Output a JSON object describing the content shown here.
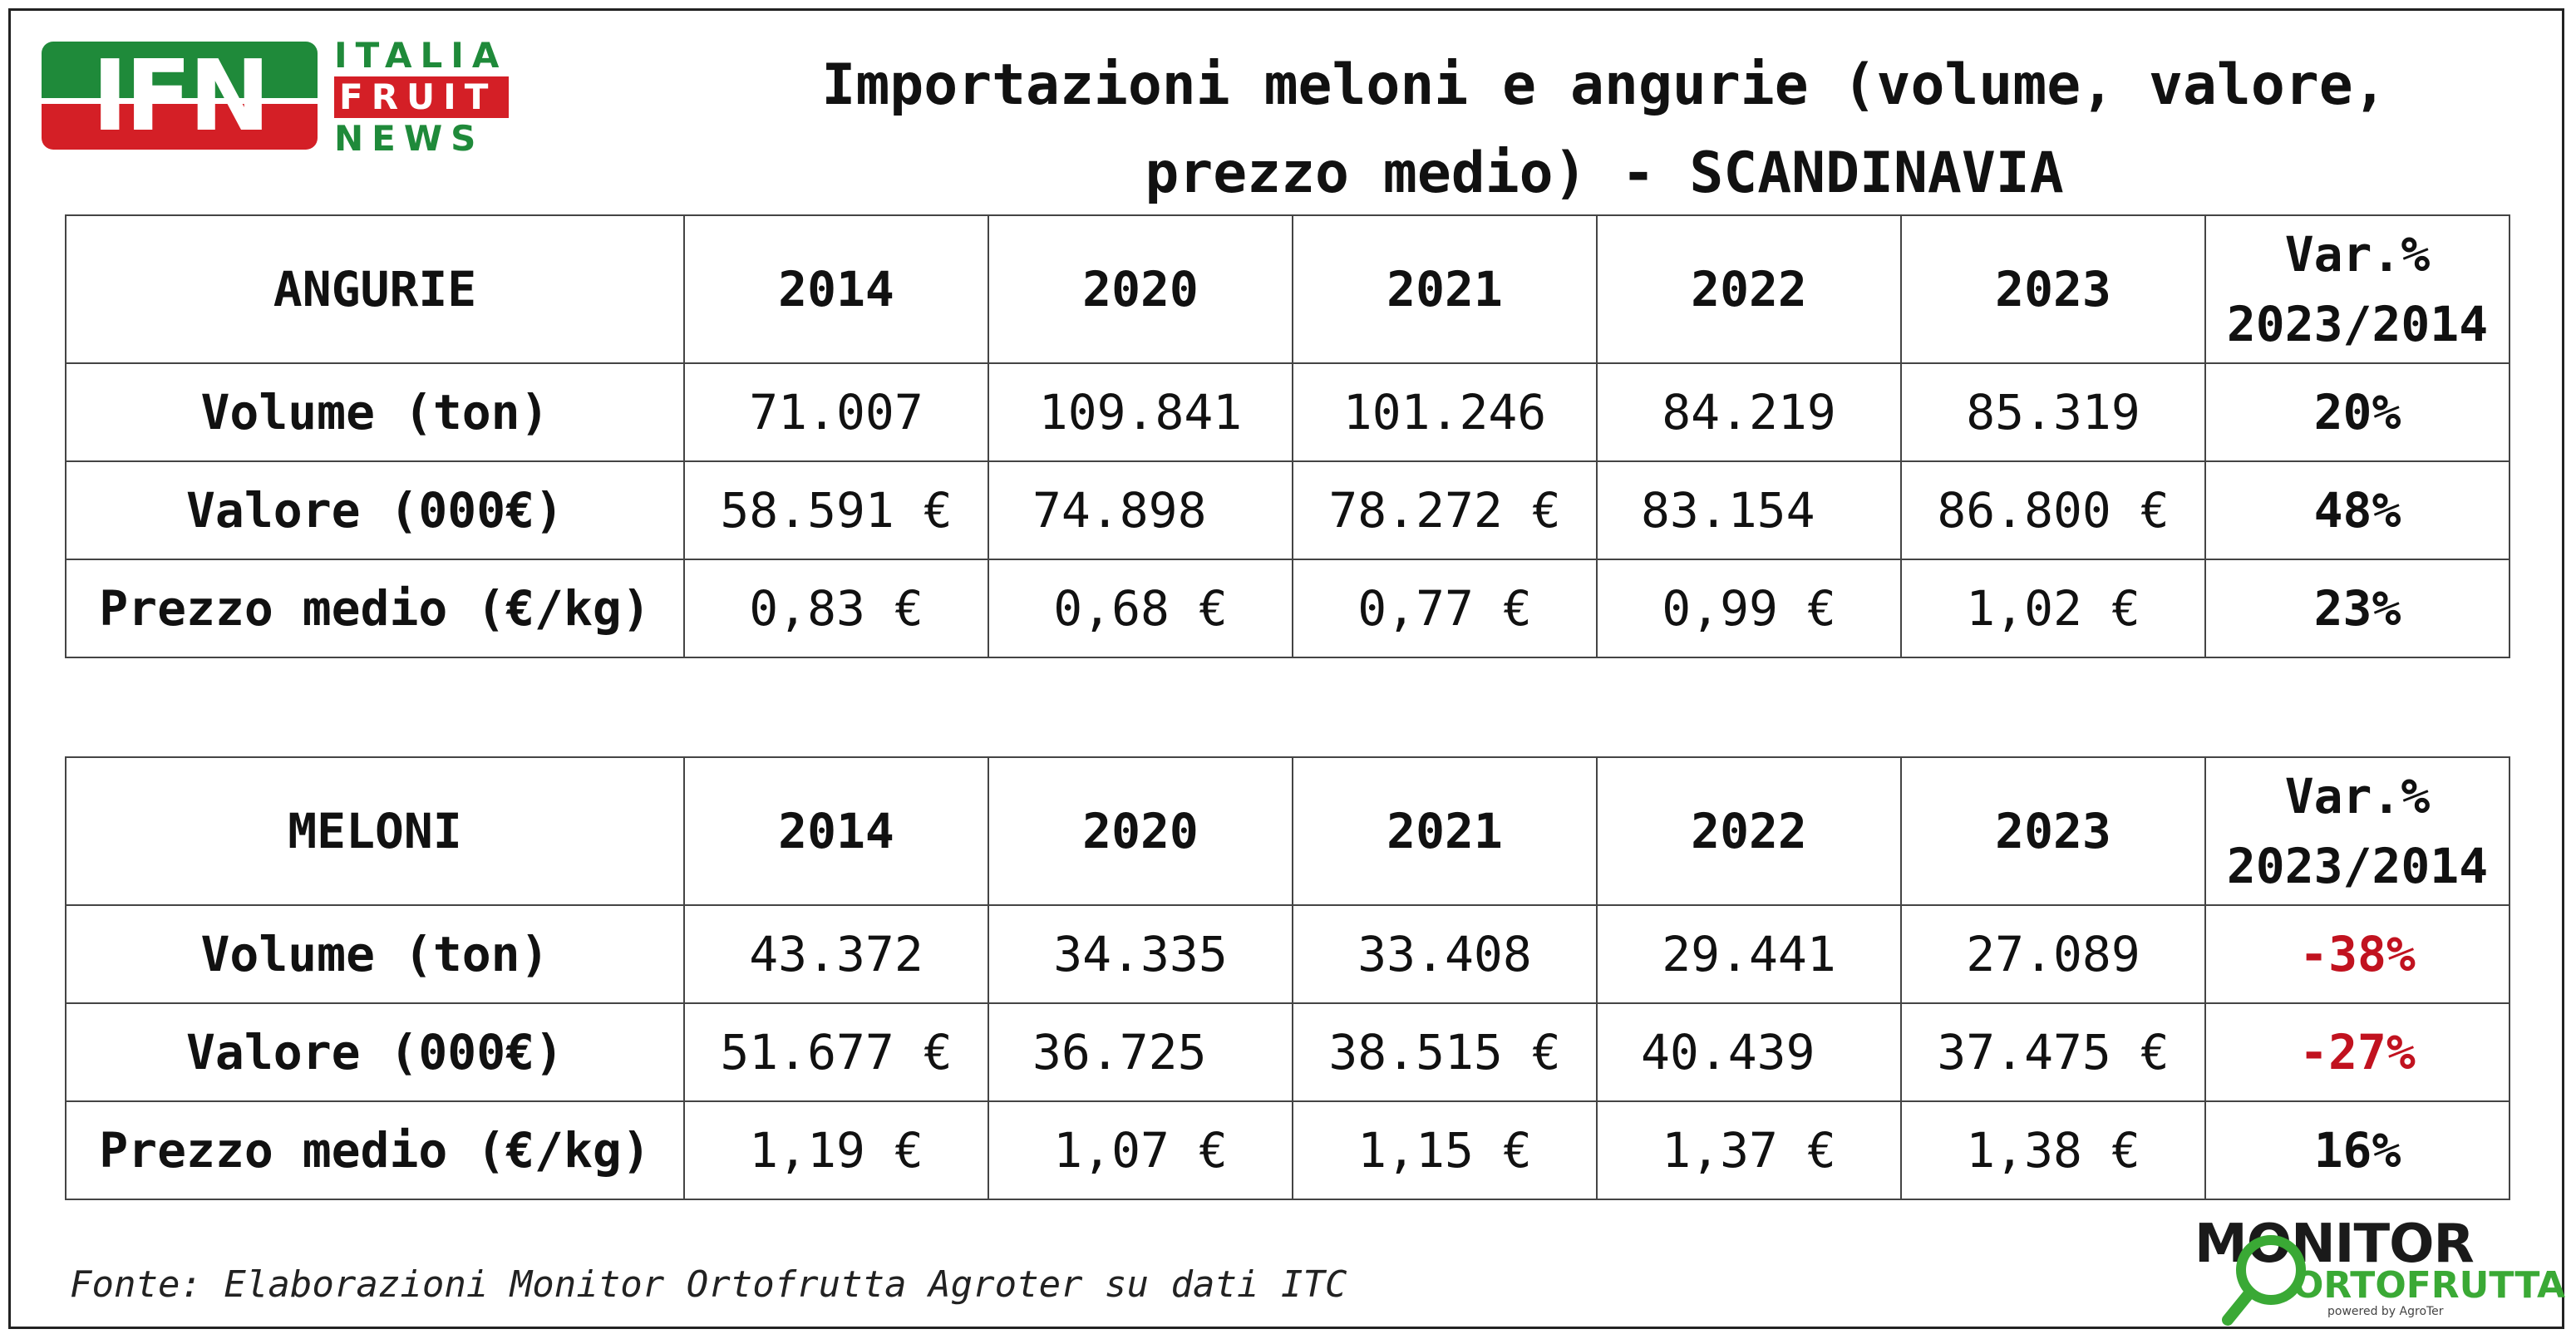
{
  "logo": {
    "letters": "IFN",
    "words": [
      "ITALIA",
      "FRUIT",
      "NEWS"
    ]
  },
  "title": {
    "line1": "Importazioni meloni e angurie (volume, valore,",
    "line2": "prezzo medio) - SCANDINAVIA"
  },
  "tables": [
    {
      "header": [
        "ANGURIE",
        "2014",
        "2020",
        "2021",
        "2022",
        "2023"
      ],
      "var_header": [
        "Var.%",
        "2023/2014"
      ],
      "rows": [
        {
          "label": "Volume (ton)",
          "cells": [
            "71.007",
            "109.841",
            "101.246",
            "84.219",
            "85.319"
          ],
          "var": "20%"
        },
        {
          "label": "Valore (000€)",
          "cells": [
            "58.591 €",
            "74.898",
            "78.272 €",
            "83.154",
            "86.800 €"
          ],
          "var": "48%"
        },
        {
          "label": "Prezzo medio (€/kg)",
          "cells": [
            "0,83 €",
            "0,68 €",
            "0,77 €",
            "0,99 €",
            "1,02 €"
          ],
          "var": "23%"
        }
      ]
    },
    {
      "header": [
        "MELONI",
        "2014",
        "2020",
        "2021",
        "2022",
        "2023"
      ],
      "var_header": [
        "Var.%",
        "2023/2014"
      ],
      "rows": [
        {
          "label": "Volume (ton)",
          "cells": [
            "43.372",
            "34.335",
            "33.408",
            "29.441",
            "27.089"
          ],
          "var": "-38%"
        },
        {
          "label": "Valore (000€)",
          "cells": [
            "51.677 €",
            "36.725",
            "38.515 €",
            "40.439",
            "37.475 €"
          ],
          "var": "-27%"
        },
        {
          "label": "Prezzo medio (€/kg)",
          "cells": [
            "1,19 €",
            "1,07 €",
            "1,15 €",
            "1,37 €",
            "1,38 €"
          ],
          "var": "16%"
        }
      ]
    }
  ],
  "source": "Fonte: Elaborazioni Monitor Ortofrutta Agroter su dati ITC",
  "monitor_logo": {
    "line1": "MONITOR",
    "line2": "ORTOFRUTTA",
    "powered": "powered by AgroTer"
  },
  "colors": {
    "negative": "#c1121f",
    "ifn_green": "#1f8a3a",
    "ifn_red": "#d41f26",
    "monitor_green": "#3aa935"
  }
}
